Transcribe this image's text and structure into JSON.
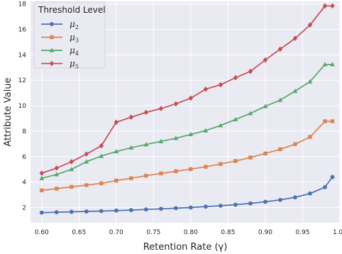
{
  "chart_data": {
    "type": "line",
    "xlabel": "Retention Rate (γ)",
    "ylabel": "Attribute Value",
    "xlim": [
      0.585,
      1.0
    ],
    "ylim": [
      0.8,
      18.2
    ],
    "x_ticks": [
      "0.60",
      "0.65",
      "0.70",
      "0.75",
      "0.80",
      "0.85",
      "0.90",
      "0.95",
      "1.00"
    ],
    "y_ticks": [
      "2",
      "4",
      "6",
      "8",
      "10",
      "12",
      "14",
      "16",
      "18"
    ],
    "grid": true,
    "legend": {
      "title": "Threshold Level",
      "placement": "top-left",
      "entries": [
        "μ2",
        "μ3",
        "μ4",
        "μ5"
      ]
    },
    "x": [
      0.6,
      0.62,
      0.64,
      0.66,
      0.68,
      0.7,
      0.72,
      0.74,
      0.76,
      0.78,
      0.8,
      0.82,
      0.84,
      0.86,
      0.88,
      0.9,
      0.92,
      0.94,
      0.96,
      0.98,
      0.99
    ],
    "series": [
      {
        "name": "μ2",
        "color": "#4c72b0",
        "marker": "circle",
        "values": [
          1.6,
          1.63,
          1.66,
          1.69,
          1.72,
          1.76,
          1.8,
          1.85,
          1.9,
          1.95,
          2.0,
          2.07,
          2.14,
          2.22,
          2.32,
          2.45,
          2.6,
          2.8,
          3.1,
          3.6,
          4.4
        ]
      },
      {
        "name": "μ3",
        "color": "#dd8452",
        "marker": "square",
        "values": [
          3.35,
          3.48,
          3.62,
          3.76,
          3.9,
          4.12,
          4.3,
          4.5,
          4.68,
          4.85,
          5.02,
          5.2,
          5.42,
          5.66,
          5.93,
          6.25,
          6.58,
          6.98,
          7.55,
          8.78,
          8.78
        ]
      },
      {
        "name": "μ4",
        "color": "#55a868",
        "marker": "triangle",
        "values": [
          4.3,
          4.6,
          5.0,
          5.6,
          6.05,
          6.4,
          6.7,
          6.95,
          7.2,
          7.45,
          7.75,
          8.05,
          8.45,
          8.92,
          9.4,
          9.95,
          10.45,
          11.15,
          11.9,
          13.25,
          13.25
        ]
      },
      {
        "name": "μ5",
        "color": "#c44e52",
        "marker": "diamond",
        "values": [
          4.7,
          5.1,
          5.6,
          6.2,
          6.85,
          8.7,
          9.1,
          9.48,
          9.78,
          10.15,
          10.6,
          11.3,
          11.65,
          12.2,
          12.7,
          13.6,
          14.45,
          15.3,
          16.35,
          17.85,
          17.85
        ]
      }
    ]
  }
}
